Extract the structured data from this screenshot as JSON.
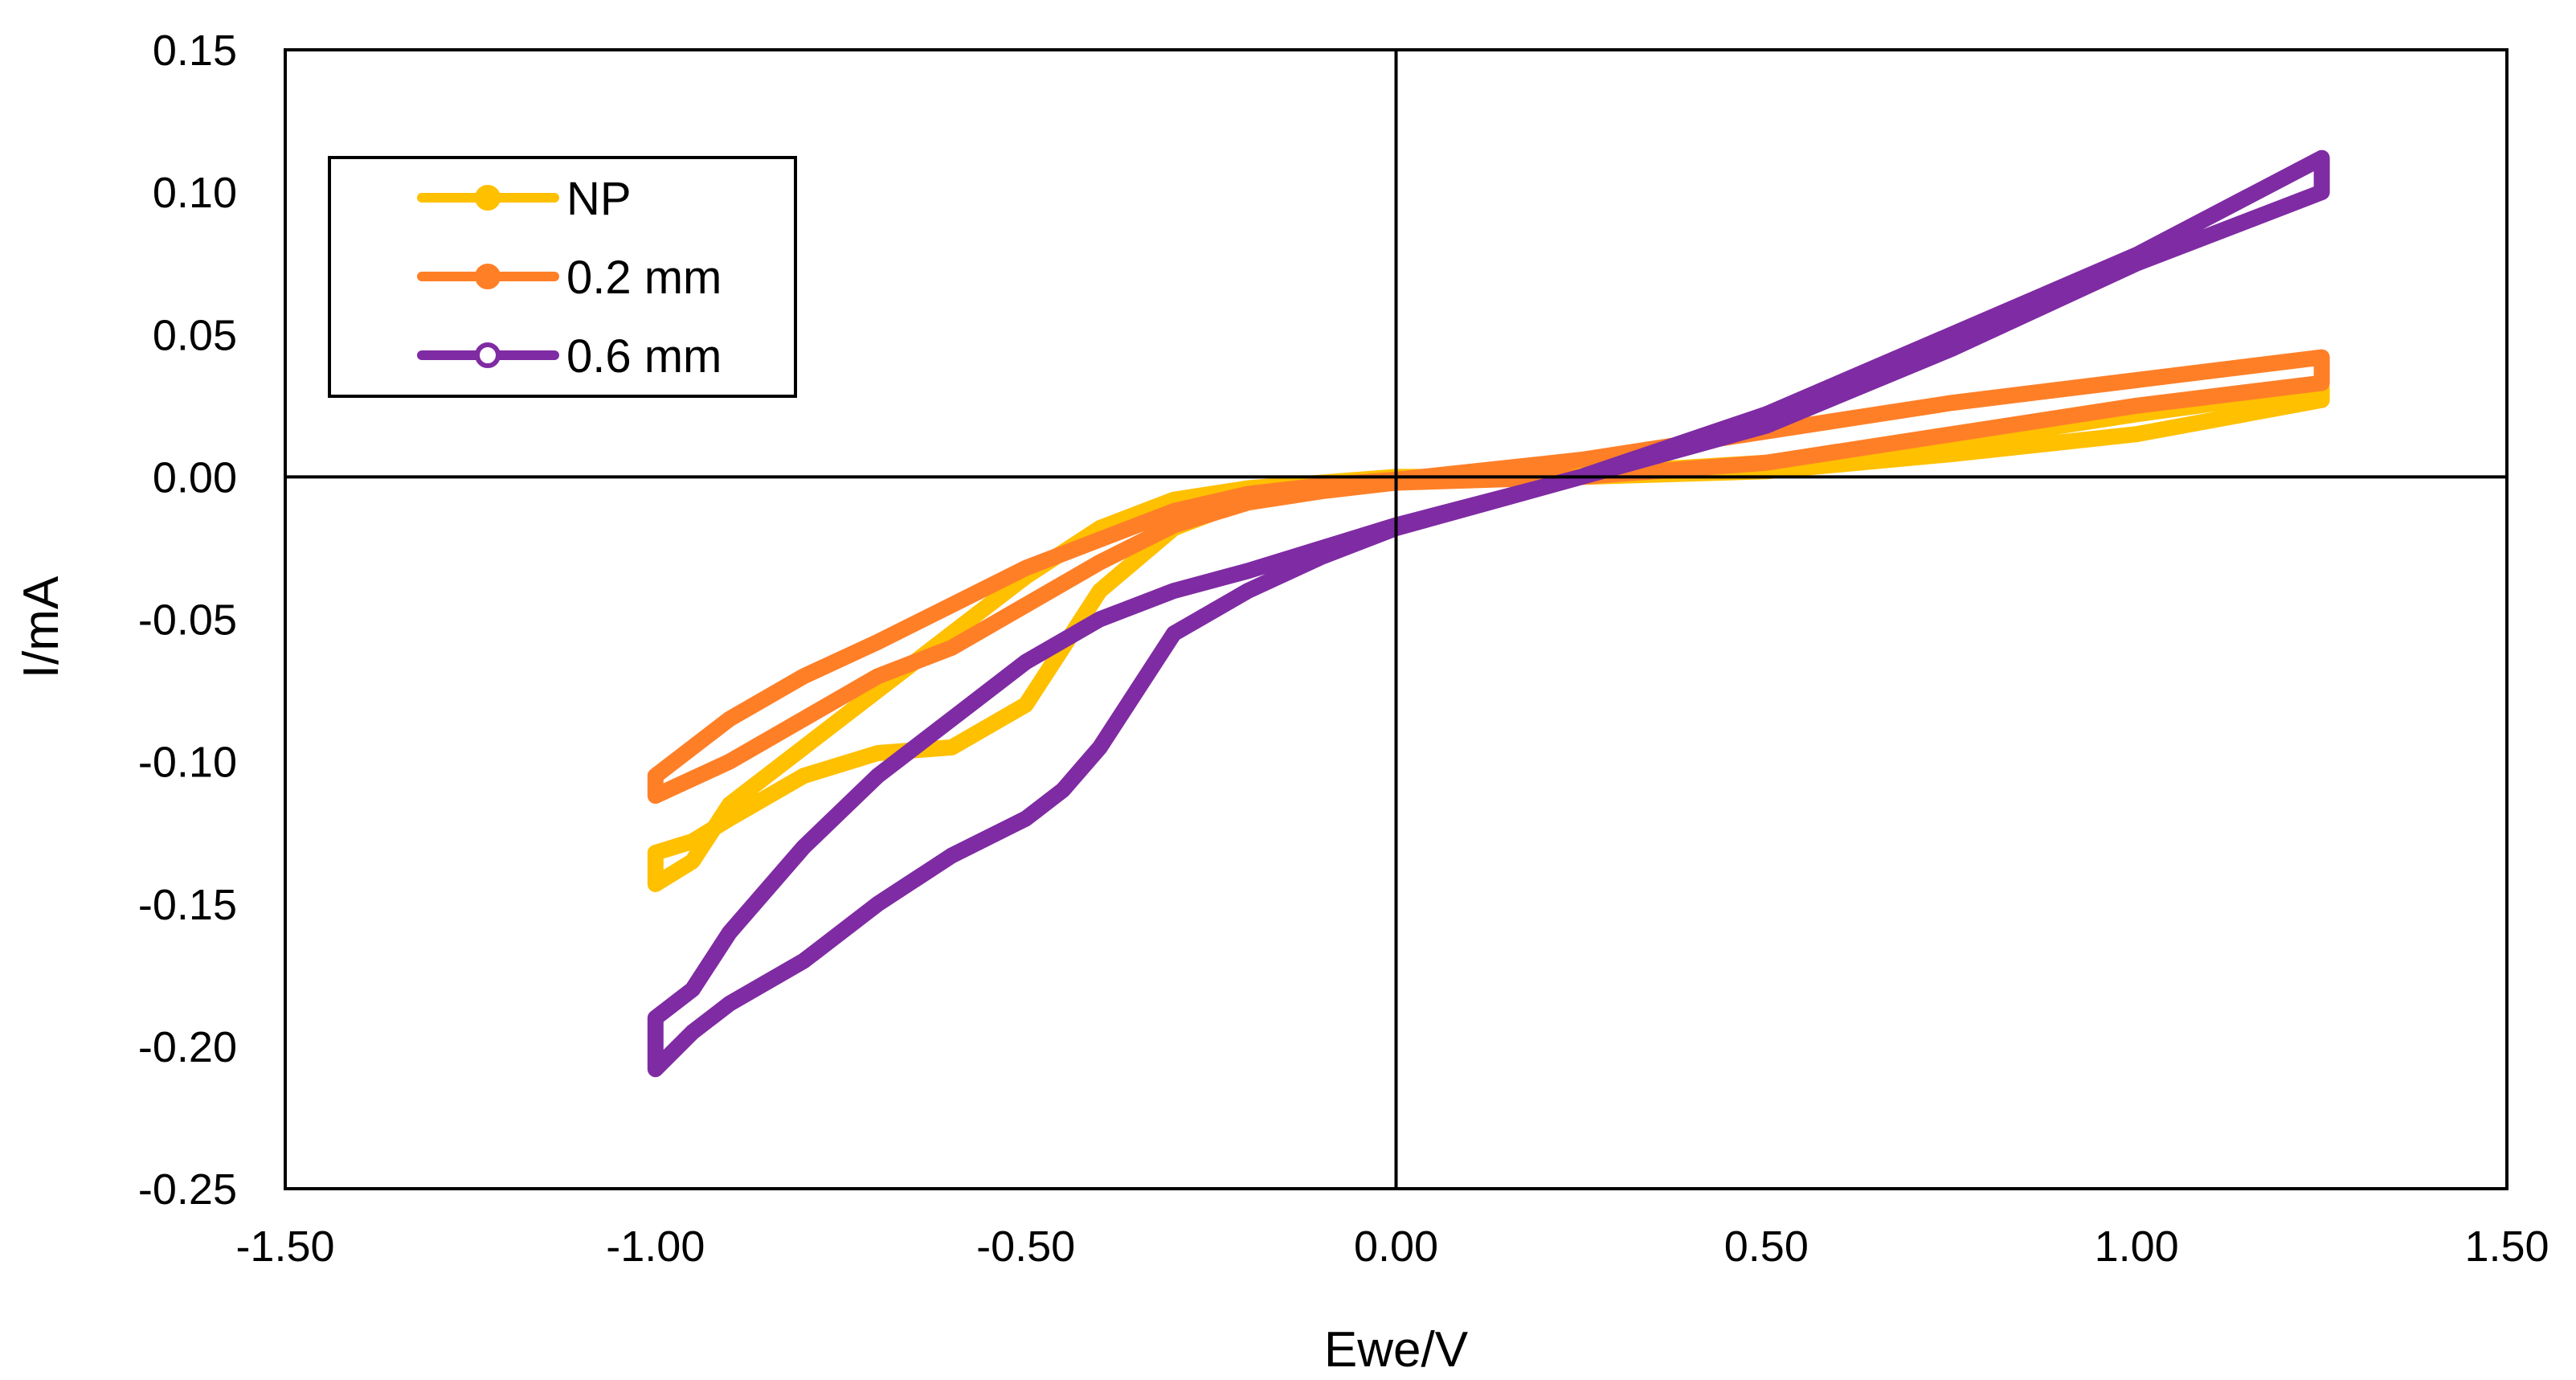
{
  "chart_data": {
    "type": "line",
    "title": "",
    "xlabel": "Ewe/V",
    "ylabel": "I/mA",
    "xlim": [
      -1.5,
      1.5
    ],
    "ylim": [
      -0.25,
      0.15
    ],
    "x_ticks": [
      "-1.50",
      "-1.00",
      "-0.50",
      "0.00",
      "0.50",
      "1.00",
      "1.50"
    ],
    "x_tick_values": [
      -1.5,
      -1.0,
      -0.5,
      0.0,
      0.5,
      1.0,
      1.5
    ],
    "y_ticks": [
      "0.15",
      "0.10",
      "0.05",
      "0.00",
      "-0.05",
      "-0.10",
      "-0.15",
      "-0.20",
      "-0.25"
    ],
    "y_tick_values": [
      0.15,
      0.1,
      0.05,
      0.0,
      -0.05,
      -0.1,
      -0.15,
      -0.2,
      -0.25
    ],
    "grid": false,
    "legend_position": "top-left",
    "series": [
      {
        "name": "NP",
        "color": "#FFC000",
        "x": [
          -1.0,
          -0.95,
          -0.9,
          -0.8,
          -0.7,
          -0.6,
          -0.5,
          -0.4,
          -0.3,
          -0.2,
          -0.1,
          0.0,
          0.25,
          0.5,
          0.75,
          1.0,
          1.25,
          1.25,
          1.0,
          0.75,
          0.5,
          0.25,
          0.0,
          -0.1,
          -0.2,
          -0.3,
          -0.4,
          -0.45,
          -0.5,
          -0.6,
          -0.7,
          -0.8,
          -0.9,
          -0.95,
          -1.0
        ],
        "y": [
          -0.143,
          -0.135,
          -0.115,
          -0.095,
          -0.075,
          -0.055,
          -0.035,
          -0.018,
          -0.008,
          -0.004,
          -0.002,
          0.0,
          0.0,
          0.002,
          0.008,
          0.015,
          0.027,
          0.031,
          0.022,
          0.012,
          0.005,
          0.001,
          -0.001,
          -0.003,
          -0.008,
          -0.018,
          -0.04,
          -0.06,
          -0.08,
          -0.095,
          -0.097,
          -0.105,
          -0.12,
          -0.128,
          -0.132
        ]
      },
      {
        "name": "0.2 mm",
        "color": "#FF7F27",
        "x": [
          -1.0,
          -0.9,
          -0.8,
          -0.7,
          -0.6,
          -0.5,
          -0.4,
          -0.3,
          -0.2,
          -0.1,
          0.0,
          0.25,
          0.5,
          0.75,
          1.0,
          1.25,
          1.25,
          1.0,
          0.75,
          0.5,
          0.25,
          0.0,
          -0.1,
          -0.2,
          -0.3,
          -0.4,
          -0.5,
          -0.6,
          -0.7,
          -0.8,
          -0.9,
          -1.0
        ],
        "y": [
          -0.112,
          -0.1,
          -0.085,
          -0.07,
          -0.06,
          -0.045,
          -0.03,
          -0.017,
          -0.009,
          -0.005,
          -0.002,
          0.0,
          0.005,
          0.015,
          0.025,
          0.033,
          0.042,
          0.034,
          0.026,
          0.016,
          0.006,
          -0.001,
          -0.003,
          -0.006,
          -0.012,
          -0.022,
          -0.032,
          -0.045,
          -0.058,
          -0.07,
          -0.085,
          -0.105
        ]
      },
      {
        "name": "0.6 mm",
        "color": "#7F2BA3",
        "x": [
          -1.0,
          -0.95,
          -0.9,
          -0.8,
          -0.7,
          -0.6,
          -0.5,
          -0.45,
          -0.4,
          -0.35,
          -0.3,
          -0.2,
          -0.1,
          0.0,
          0.25,
          0.5,
          0.75,
          1.0,
          1.25,
          1.25,
          1.0,
          0.75,
          0.5,
          0.25,
          0.0,
          -0.1,
          -0.2,
          -0.3,
          -0.4,
          -0.5,
          -0.6,
          -0.7,
          -0.8,
          -0.9,
          -0.95,
          -1.0
        ],
        "y": [
          -0.208,
          -0.195,
          -0.185,
          -0.17,
          -0.15,
          -0.133,
          -0.12,
          -0.11,
          -0.095,
          -0.075,
          -0.055,
          -0.04,
          -0.028,
          -0.018,
          0.0,
          0.022,
          0.05,
          0.078,
          0.112,
          0.1,
          0.075,
          0.045,
          0.018,
          0.0,
          -0.017,
          -0.025,
          -0.033,
          -0.04,
          -0.05,
          -0.065,
          -0.085,
          -0.105,
          -0.13,
          -0.16,
          -0.18,
          -0.19
        ]
      }
    ]
  }
}
